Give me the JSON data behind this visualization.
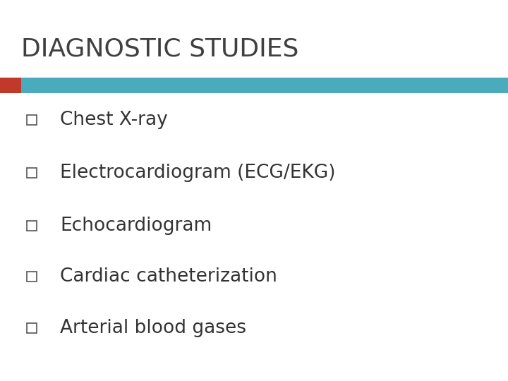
{
  "title": "DIAGNOSTIC STUDIES",
  "title_color": "#404040",
  "title_fontsize": 26,
  "background_color": "#ffffff",
  "bar_red_color": "#c0392b",
  "bar_teal_color": "#4aabbc",
  "bullet_items": [
    "Chest X-ray",
    "Electrocardiogram (ECG/EKG)",
    "Echocardiogram",
    "Cardiac catheterization",
    "Arterial blood gases"
  ],
  "bullet_fontsize": 19,
  "bullet_color": "#333333",
  "checkbox_color": "#555555"
}
